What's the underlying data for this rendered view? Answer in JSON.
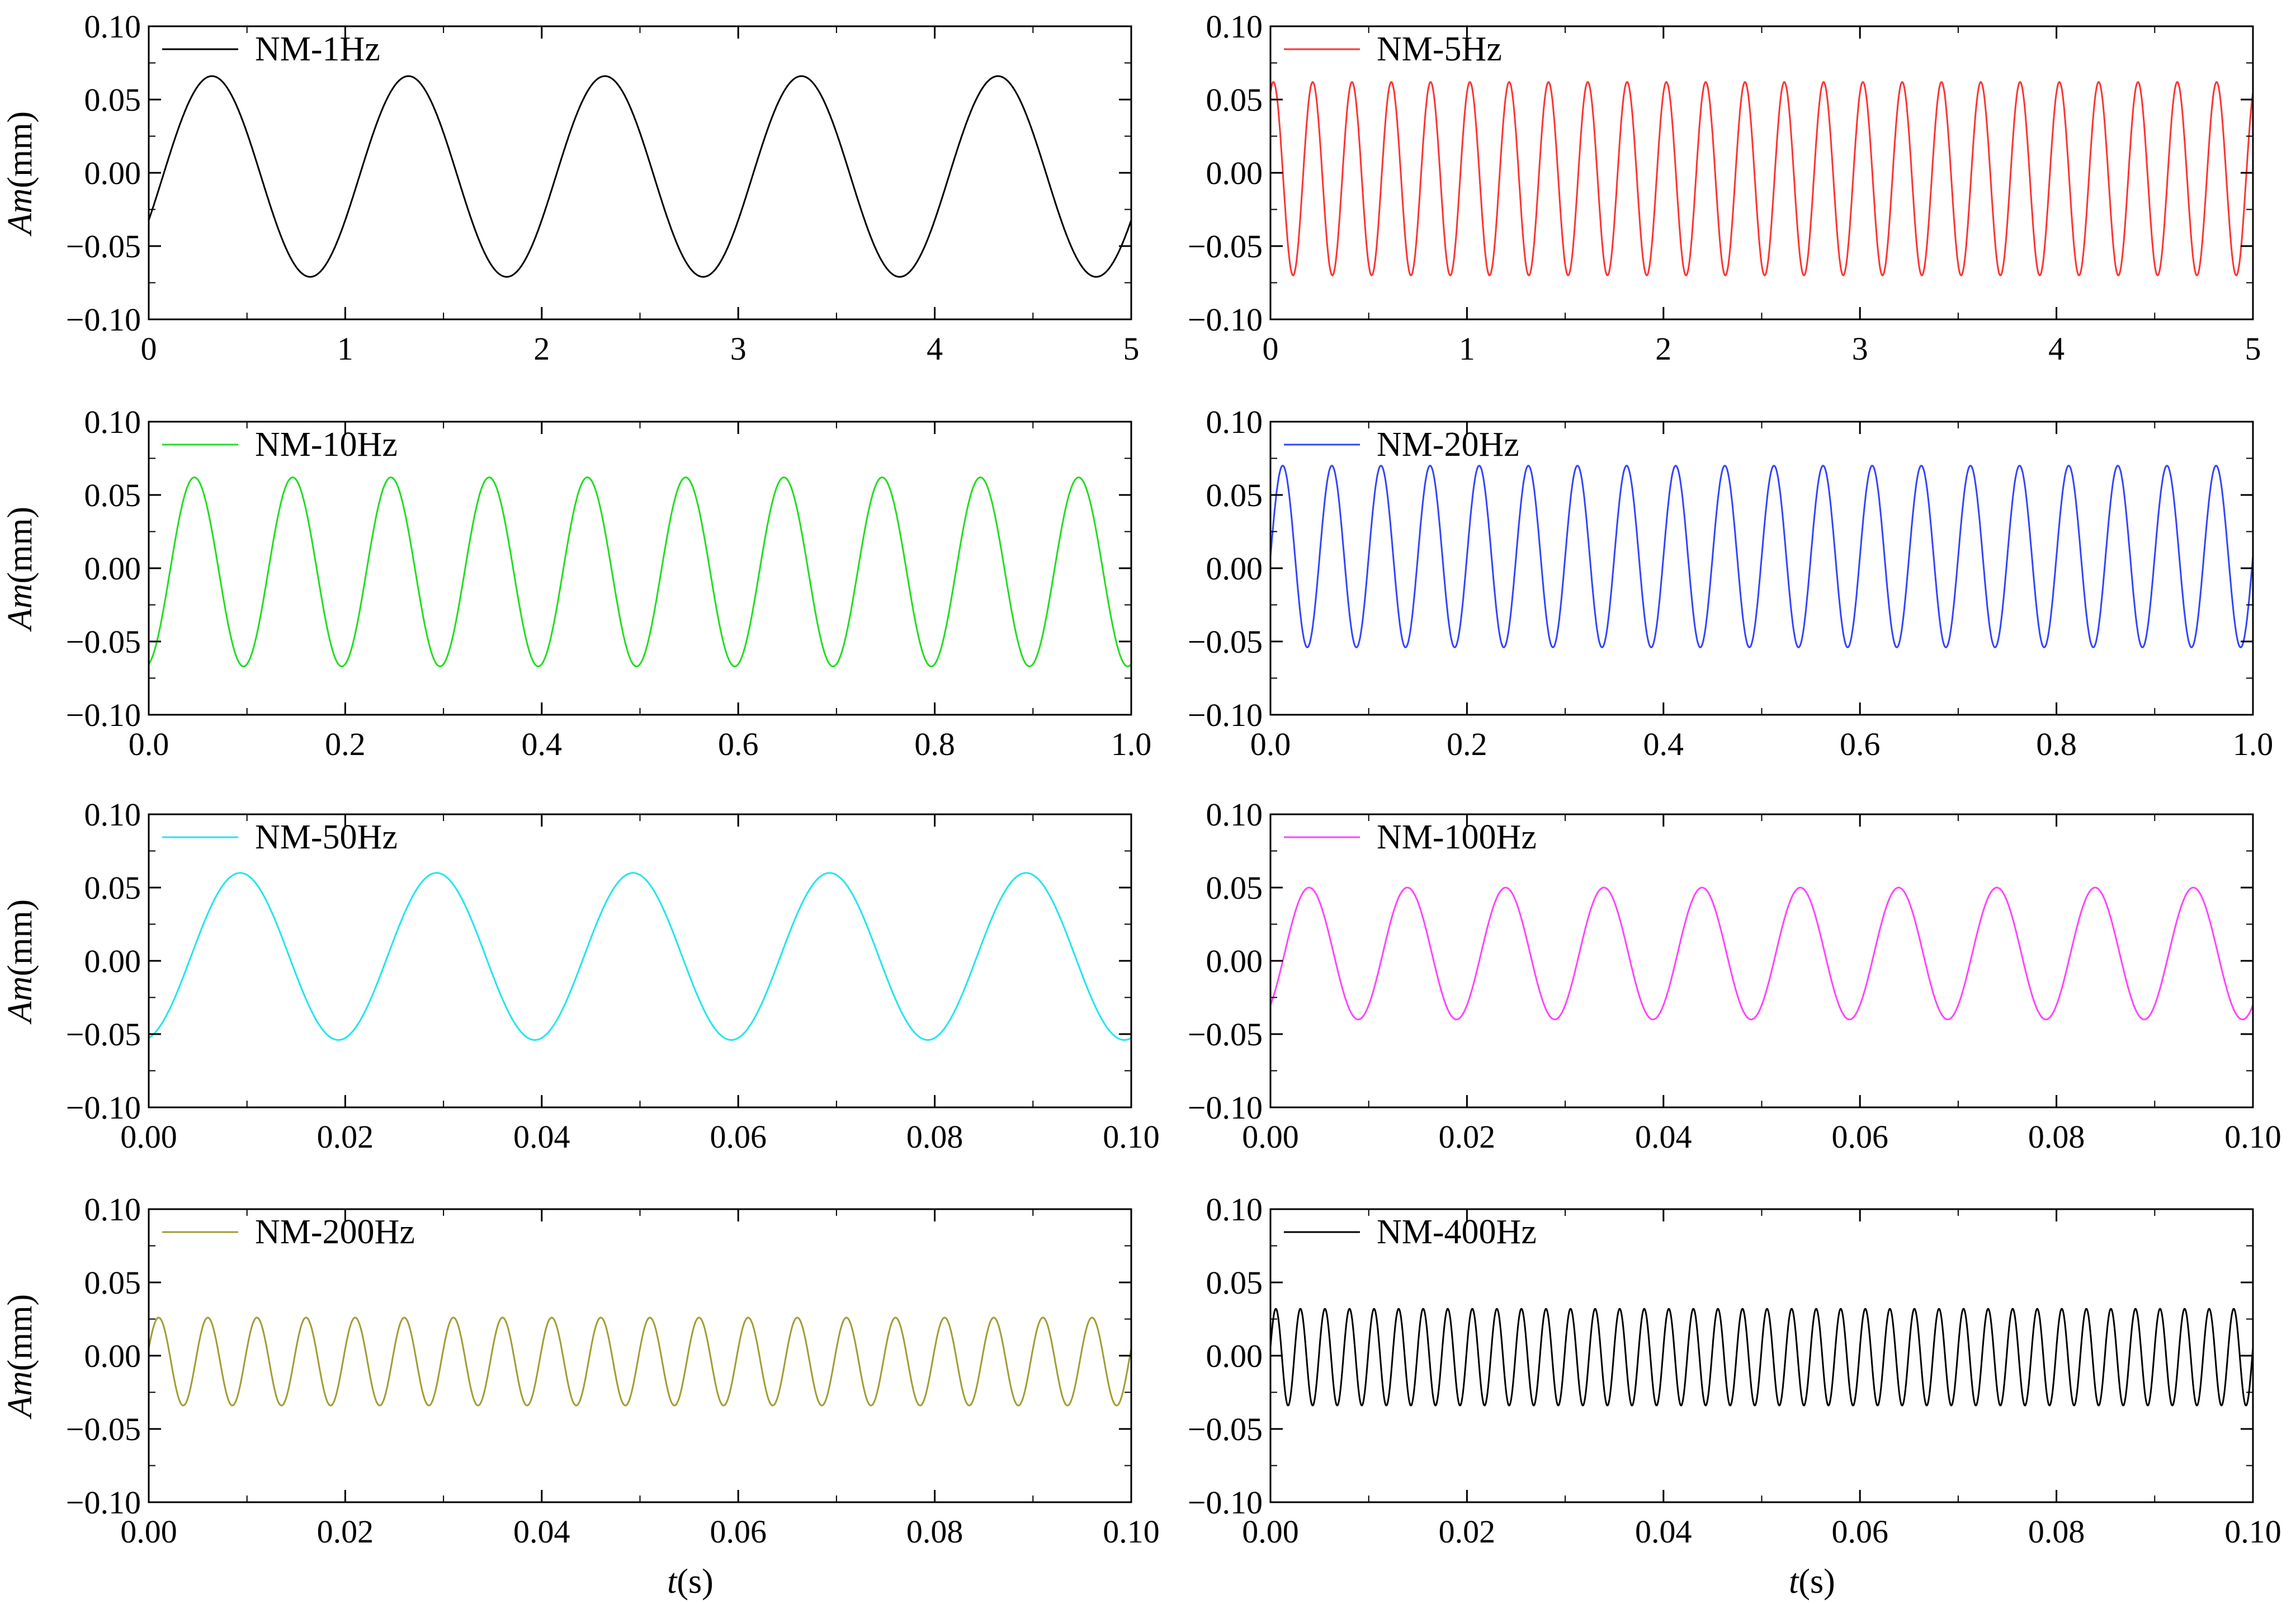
{
  "chart_data": [
    {
      "type": "line",
      "legend": "NM-1Hz",
      "legend_position": "top-left",
      "color": "#000000",
      "ylabel": "Am(mm)",
      "xlabel": "",
      "ylim": [
        -0.1,
        0.1
      ],
      "yticks": [
        "0.10",
        "0.05",
        "0.00",
        "−0.05",
        "−0.10"
      ],
      "xlim": [
        0,
        5
      ],
      "xticks": [
        "0",
        "1",
        "2",
        "3",
        "4",
        "5"
      ],
      "x_minor": 1,
      "series": {
        "frequency": 1,
        "amplitude": 0.068,
        "offset": -0.002,
        "phase_shift": 0.06,
        "cycles": 5,
        "ymax": 0.066,
        "ymin": -0.071
      }
    },
    {
      "type": "line",
      "legend": "NM-5Hz",
      "legend_position": "top-left",
      "color": "#ff3333",
      "ylabel": "",
      "xlabel": "",
      "ylim": [
        -0.1,
        0.1
      ],
      "yticks": [
        "0.10",
        "0.05",
        "0.00",
        "−0.05",
        "−0.10"
      ],
      "xlim": [
        0,
        5
      ],
      "xticks": [
        "0",
        "1",
        "2",
        "3",
        "4",
        "5"
      ],
      "x_minor": 1,
      "series": {
        "frequency": 5,
        "amplitude": 0.066,
        "offset": -0.004,
        "phase_shift": 0.0,
        "cycles": 25,
        "ymax": 0.062,
        "ymin": -0.07
      }
    },
    {
      "type": "line",
      "legend": "NM-10Hz",
      "legend_position": "top-left",
      "color": "#22dd22",
      "ylabel": "Am(mm)",
      "xlabel": "",
      "ylim": [
        -0.1,
        0.1
      ],
      "yticks": [
        "0.10",
        "0.05",
        "0.00",
        "−0.05",
        "−0.10"
      ],
      "xlim": [
        0,
        1
      ],
      "xticks": [
        "0.0",
        "0.2",
        "0.4",
        "0.6",
        "0.8",
        "1.0"
      ],
      "x_minor": 1,
      "series": {
        "frequency": 10,
        "amplitude": 0.065,
        "offset": -0.002,
        "phase_shift": 0.0,
        "cycles": 10,
        "ymax": 0.062,
        "ymin": -0.067
      }
    },
    {
      "type": "line",
      "legend": "NM-20Hz",
      "legend_position": "top-left",
      "color": "#3344ff",
      "ylabel": "",
      "xlabel": "",
      "ylim": [
        -0.1,
        0.1
      ],
      "yticks": [
        "0.10",
        "0.05",
        "0.00",
        "−0.05",
        "−0.10"
      ],
      "xlim": [
        0,
        1
      ],
      "xticks": [
        "0.0",
        "0.2",
        "0.4",
        "0.6",
        "0.8",
        "1.0"
      ],
      "x_minor": 1,
      "series": {
        "frequency": 20,
        "amplitude": 0.062,
        "offset": 0.008,
        "phase_shift": 0.0,
        "cycles": 20,
        "ymax": 0.07,
        "ymin": -0.054
      }
    },
    {
      "type": "line",
      "legend": "NM-50Hz",
      "legend_position": "top-left",
      "color": "#22e5f0",
      "ylabel": "Am(mm)",
      "xlabel": "",
      "ylim": [
        -0.1,
        0.1
      ],
      "yticks": [
        "0.10",
        "0.05",
        "0.00",
        "−0.05",
        "−0.10"
      ],
      "xlim": [
        0,
        0.1
      ],
      "xticks": [
        "0.00",
        "0.02",
        "0.04",
        "0.06",
        "0.08",
        "0.10"
      ],
      "x_minor": 1,
      "series": {
        "frequency": 50,
        "amplitude": 0.057,
        "offset": 0.003,
        "phase_shift": 0.0,
        "cycles": 5,
        "ymax": 0.06,
        "ymin": -0.054
      }
    },
    {
      "type": "line",
      "legend": "NM-100Hz",
      "legend_position": "top-left",
      "color": "#ff44ff",
      "ylabel": "",
      "xlabel": "",
      "ylim": [
        -0.1,
        0.1
      ],
      "yticks": [
        "0.10",
        "0.05",
        "0.00",
        "−0.05",
        "−0.10"
      ],
      "xlim": [
        0,
        0.1
      ],
      "xticks": [
        "0.00",
        "0.02",
        "0.04",
        "0.06",
        "0.08",
        "0.10"
      ],
      "x_minor": 1,
      "series": {
        "frequency": 100,
        "amplitude": 0.045,
        "offset": 0.005,
        "phase_shift": 0.0,
        "cycles": 10,
        "ymax": 0.05,
        "ymin": -0.04
      }
    },
    {
      "type": "line",
      "legend": "NM-200Hz",
      "legend_position": "top-left",
      "color": "#a09d33",
      "ylabel": "Am(mm)",
      "xlabel": "t(s)",
      "ylim": [
        -0.1,
        0.1
      ],
      "yticks": [
        "0.10",
        "0.05",
        "0.00",
        "−0.05",
        "−0.10"
      ],
      "xlim": [
        0,
        0.1
      ],
      "xticks": [
        "0.00",
        "0.02",
        "0.04",
        "0.06",
        "0.08",
        "0.10"
      ],
      "x_minor": 1,
      "series": {
        "frequency": 200,
        "amplitude": 0.03,
        "offset": -0.004,
        "phase_shift": 0.0,
        "cycles": 20,
        "ymax": 0.026,
        "ymin": -0.034
      }
    },
    {
      "type": "line",
      "legend": "NM-400Hz",
      "legend_position": "top-left",
      "color": "#000000",
      "ylabel": "",
      "xlabel": "t(s)",
      "ylim": [
        -0.1,
        0.1
      ],
      "yticks": [
        "0.10",
        "0.05",
        "0.00",
        "−0.05",
        "−0.10"
      ],
      "xlim": [
        0,
        0.1
      ],
      "xticks": [
        "0.00",
        "0.02",
        "0.04",
        "0.06",
        "0.08",
        "0.10"
      ],
      "x_minor": 1,
      "series": {
        "frequency": 400,
        "amplitude": 0.033,
        "offset": -0.001,
        "phase_shift": 0.0,
        "cycles": 40,
        "ymax": 0.032,
        "ymin": -0.034
      }
    }
  ]
}
